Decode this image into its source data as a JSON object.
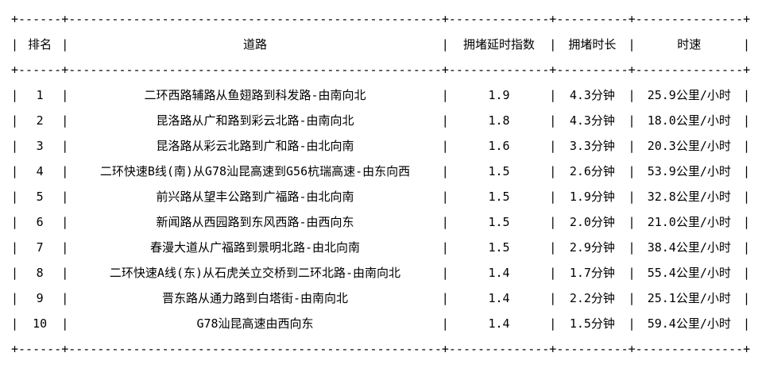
{
  "table": {
    "title_hint": "traffic-congestion-ranking",
    "background_color": "#ffffff",
    "text_color": "#000000",
    "junction_char": "+",
    "dash_char": "-",
    "pipe_char": "|",
    "columns": [
      {
        "key": "rank",
        "label": "排名",
        "width_ch": 6
      },
      {
        "key": "road",
        "label": "道路",
        "width_ch": 52
      },
      {
        "key": "delay-index",
        "label": "拥堵延时指数",
        "width_ch": 14
      },
      {
        "key": "duration",
        "label": "拥堵时长",
        "width_ch": 10
      },
      {
        "key": "speed",
        "label": "时速",
        "width_ch": 15
      }
    ],
    "rows": [
      [
        "1",
        "二环西路辅路从鱼翅路到科发路-由南向北",
        "1.9",
        "4.3分钟",
        "25.9公里/小时"
      ],
      [
        "2",
        "昆洛路从广和路到彩云北路-由南向北",
        "1.8",
        "4.3分钟",
        "18.0公里/小时"
      ],
      [
        "3",
        "昆洛路从彩云北路到广和路-由北向南",
        "1.6",
        "3.3分钟",
        "20.3公里/小时"
      ],
      [
        "4",
        "二环快速B线(南)从G78汕昆高速到G56杭瑞高速-由东向西",
        "1.5",
        "2.6分钟",
        "53.9公里/小时"
      ],
      [
        "5",
        "前兴路从望丰公路到广福路-由北向南",
        "1.5",
        "1.9分钟",
        "32.8公里/小时"
      ],
      [
        "6",
        "新闻路从西园路到东风西路-由西向东",
        "1.5",
        "2.0分钟",
        "21.0公里/小时"
      ],
      [
        "7",
        "春漫大道从广福路到景明北路-由北向南",
        "1.5",
        "2.9分钟",
        "38.4公里/小时"
      ],
      [
        "8",
        "二环快速A线(东)从石虎关立交桥到二环北路-由南向北",
        "1.4",
        "1.7分钟",
        "55.4公里/小时"
      ],
      [
        "9",
        "晋东路从通力路到白塔街-由南向北",
        "1.4",
        "2.2分钟",
        "25.1公里/小时"
      ],
      [
        "10",
        "G78汕昆高速由西向东",
        "1.4",
        "1.5分钟",
        "59.4公里/小时"
      ]
    ]
  }
}
